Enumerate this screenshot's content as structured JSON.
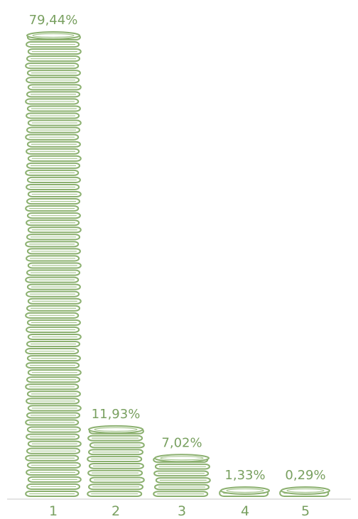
{
  "chart_data": {
    "type": "bar",
    "categories": [
      "1",
      "2",
      "3",
      "4",
      "5"
    ],
    "values": [
      79.44,
      11.93,
      7.02,
      1.33,
      0.29
    ],
    "value_labels": [
      "79,44%",
      "11,93%",
      "7,02%",
      "1,33%",
      "0,29%"
    ],
    "title": "",
    "xlabel": "",
    "ylabel": "",
    "ylim": [
      0,
      79.44
    ],
    "grid": false,
    "legend": "none",
    "mark_style": "coin-stack",
    "color": "#8bb06f"
  }
}
